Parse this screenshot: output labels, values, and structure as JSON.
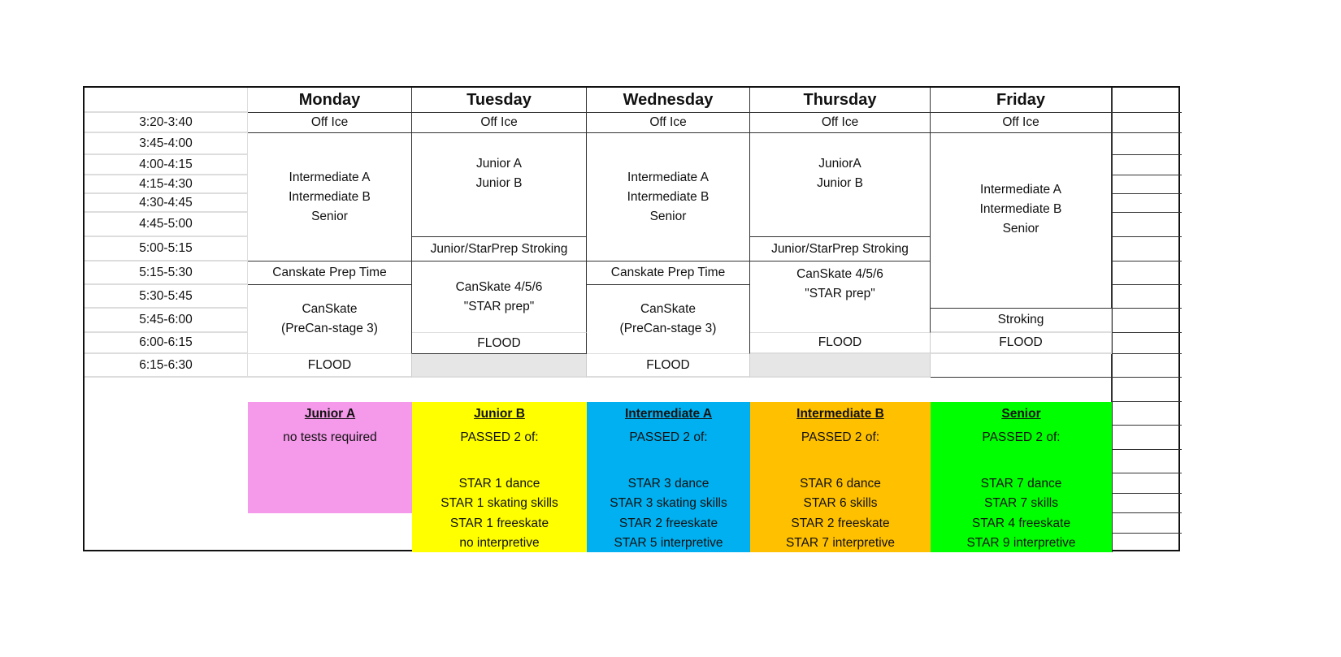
{
  "days": [
    "Monday",
    "Tuesday",
    "Wednesday",
    "Thursday",
    "Friday"
  ],
  "times": [
    "3:20-3:40",
    "3:45-4:00",
    "4:00-4:15",
    "4:15-4:30",
    "4:30-4:45",
    "4:45-5:00",
    "5:00-5:15",
    "5:15-5:30",
    "5:30-5:45",
    "5:45-6:00",
    "6:00-6:15",
    "6:15-6:30"
  ],
  "schedule": {
    "monday": {
      "off_ice": "Off Ice",
      "groups": [
        "Intermediate A",
        "Intermediate B",
        "Senior"
      ],
      "prep": "Canskate Prep Time",
      "canskate": [
        "CanSkate",
        "(PreCan-stage 3)"
      ],
      "flood": "FLOOD"
    },
    "tuesday": {
      "off_ice": "Off Ice",
      "groups": [
        "Junior A",
        "Junior B"
      ],
      "stroking": "Junior/StarPrep Stroking",
      "canskate": [
        "CanSkate 4/5/6",
        "\"STAR prep\""
      ],
      "flood": "FLOOD"
    },
    "wednesday": {
      "off_ice": "Off Ice",
      "groups": [
        "Intermediate A",
        "Intermediate B",
        "Senior"
      ],
      "prep": "Canskate Prep Time",
      "canskate": [
        "CanSkate",
        "(PreCan-stage 3)"
      ],
      "flood": "FLOOD"
    },
    "thursday": {
      "off_ice": "Off Ice",
      "groups": [
        "JuniorA",
        "Junior B"
      ],
      "stroking": "Junior/StarPrep Stroking",
      "canskate": [
        "CanSkate 4/5/6",
        "\"STAR prep\""
      ],
      "flood": "FLOOD"
    },
    "friday": {
      "off_ice": "Off Ice",
      "groups": [
        "Intermediate A",
        "Intermediate B",
        "Senior"
      ],
      "stroking": "Stroking",
      "flood": "FLOOD"
    }
  },
  "legend": [
    {
      "title": "Junior A",
      "color": "#f59aea",
      "lines": [
        "no tests required"
      ]
    },
    {
      "title": "Junior B",
      "color": "#ffff00",
      "lines": [
        "PASSED 2 of:",
        "",
        "STAR 1 dance",
        "STAR 1 skating skills",
        "STAR 1 freeskate",
        "no interpretive"
      ]
    },
    {
      "title": "Intermediate A",
      "color": "#00b0f0",
      "lines": [
        "PASSED 2 of:",
        "",
        "STAR 3 dance",
        "STAR 3 skating skills",
        "STAR 2 freeskate",
        "STAR 5 interpretive"
      ]
    },
    {
      "title": "Intermediate B",
      "color": "#ffc000",
      "lines": [
        "PASSED 2 of:",
        "",
        "STAR 6 dance",
        "STAR 6 skills",
        "STAR 2 freeskate",
        "STAR 7 interpretive"
      ]
    },
    {
      "title": "Senior",
      "color": "#00ff00",
      "lines": [
        "PASSED 2 of:",
        "",
        "STAR 7 dance",
        "STAR 7 skills",
        "STAR 4 freeskate",
        "STAR 9 interpretive"
      ]
    }
  ]
}
